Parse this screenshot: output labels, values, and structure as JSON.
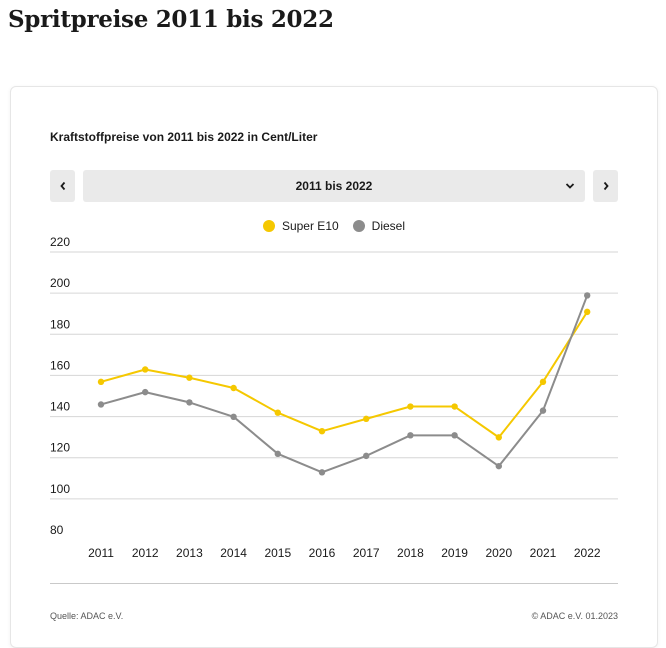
{
  "page": {
    "title": "Spritpreise 2011 bis 2022"
  },
  "chart_header": {
    "title": "Kraftstoffpreise von 2011 bis 2022 in Cent/Liter"
  },
  "range_selector": {
    "selected": "2011 bis 2022"
  },
  "icons": {
    "prev": "chevron-left-icon",
    "next": "chevron-right-icon",
    "dropdown": "chevron-down-icon"
  },
  "footer": {
    "source": "Quelle: ADAC e.V.",
    "copyright": "© ADAC e.V. 01.2023"
  },
  "colors": {
    "super": "#f5c800",
    "diesel": "#8c8c8c",
    "grid": "#d6d6d6"
  },
  "chart_data": {
    "type": "line",
    "title": "Kraftstoffpreise von 2011 bis 2022 in Cent/Liter",
    "xlabel": "",
    "ylabel": "",
    "categories": [
      "2011",
      "2012",
      "2013",
      "2014",
      "2015",
      "2016",
      "2017",
      "2018",
      "2019",
      "2020",
      "2021",
      "2022"
    ],
    "ylim": [
      80,
      220
    ],
    "yticks": [
      80,
      100,
      120,
      140,
      160,
      180,
      200,
      220
    ],
    "grid": true,
    "legend": "top-center",
    "series": [
      {
        "name": "Super E10",
        "color": "#f5c800",
        "values": [
          153,
          159,
          155,
          150,
          138,
          129,
          135,
          141,
          141,
          126,
          153,
          187
        ]
      },
      {
        "name": "Diesel",
        "color": "#8c8c8c",
        "values": [
          142,
          148,
          143,
          136,
          118,
          109,
          117,
          127,
          127,
          112,
          139,
          195
        ]
      }
    ]
  }
}
